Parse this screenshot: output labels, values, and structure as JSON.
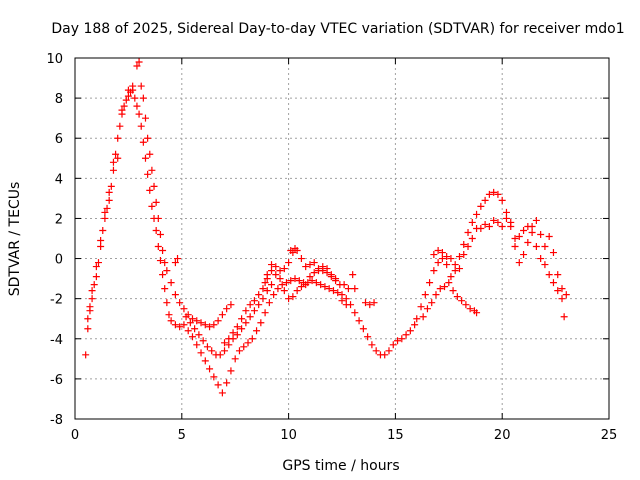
{
  "chart_data": {
    "type": "scatter",
    "title": "Day 188 of 2025, Sidereal Day-to-day VTEC variation (SDTVAR) for receiver mdo1",
    "xlabel": "GPS time / hours",
    "ylabel": "SDTVAR / TECUs",
    "xlim": [
      0,
      25
    ],
    "ylim": [
      -8,
      10
    ],
    "xticks": [
      0,
      5,
      10,
      15,
      20,
      25
    ],
    "yticks": [
      -8,
      -6,
      -4,
      -2,
      0,
      2,
      4,
      6,
      8,
      10
    ],
    "grid": true,
    "marker": "+",
    "color": "#ff0000",
    "series": [
      {
        "name": "main-trace",
        "points": [
          [
            0.5,
            -4.8
          ],
          [
            0.6,
            -3.5
          ],
          [
            0.7,
            -2.6
          ],
          [
            0.8,
            -2.0
          ],
          [
            0.9,
            -1.3
          ],
          [
            1.0,
            -0.9
          ],
          [
            1.1,
            -0.2
          ],
          [
            1.2,
            0.6
          ],
          [
            1.3,
            1.4
          ],
          [
            1.4,
            2.0
          ],
          [
            1.5,
            2.5
          ],
          [
            1.6,
            2.9
          ],
          [
            1.7,
            3.6
          ],
          [
            1.8,
            4.4
          ],
          [
            1.9,
            5.2
          ],
          [
            2.0,
            6.0
          ],
          [
            2.1,
            6.6
          ],
          [
            2.2,
            7.2
          ],
          [
            2.3,
            7.6
          ],
          [
            2.4,
            7.9
          ],
          [
            2.5,
            8.1
          ],
          [
            2.6,
            8.3
          ],
          [
            2.7,
            8.4
          ],
          [
            2.8,
            8.0
          ],
          [
            2.9,
            7.6
          ],
          [
            3.0,
            7.2
          ],
          [
            3.1,
            6.6
          ],
          [
            3.2,
            5.8
          ],
          [
            3.3,
            5.0
          ],
          [
            3.4,
            4.2
          ],
          [
            3.5,
            3.4
          ],
          [
            3.6,
            2.6
          ],
          [
            3.7,
            2.0
          ],
          [
            3.8,
            1.4
          ],
          [
            3.9,
            0.6
          ],
          [
            4.0,
            -0.1
          ],
          [
            4.1,
            -0.8
          ],
          [
            4.2,
            -1.5
          ],
          [
            4.3,
            -2.2
          ],
          [
            4.4,
            -2.8
          ],
          [
            4.5,
            -3.1
          ],
          [
            4.7,
            -3.3
          ],
          [
            4.9,
            -3.4
          ],
          [
            5.1,
            -3.3
          ],
          [
            5.3,
            -3.6
          ],
          [
            5.5,
            -3.9
          ],
          [
            5.7,
            -4.3
          ],
          [
            5.9,
            -4.7
          ],
          [
            6.1,
            -5.1
          ],
          [
            6.3,
            -5.5
          ],
          [
            6.5,
            -5.9
          ],
          [
            6.7,
            -6.3
          ],
          [
            6.9,
            -6.7
          ],
          [
            7.1,
            -6.2
          ],
          [
            7.3,
            -5.6
          ],
          [
            7.5,
            -5.0
          ],
          [
            7.7,
            -4.6
          ],
          [
            7.9,
            -4.4
          ],
          [
            8.1,
            -4.2
          ],
          [
            8.3,
            -4.0
          ],
          [
            8.5,
            -3.6
          ],
          [
            8.7,
            -3.2
          ],
          [
            8.9,
            -2.7
          ],
          [
            9.1,
            -2.2
          ],
          [
            9.3,
            -1.8
          ],
          [
            9.5,
            -1.5
          ],
          [
            9.7,
            -1.3
          ],
          [
            9.9,
            -1.2
          ],
          [
            10.1,
            -1.1
          ],
          [
            10.3,
            -1.0
          ],
          [
            10.5,
            -1.1
          ],
          [
            10.7,
            -1.2
          ],
          [
            10.9,
            -1.2
          ],
          [
            11.1,
            -1.1
          ],
          [
            11.3,
            -1.2
          ],
          [
            11.5,
            -1.3
          ],
          [
            11.7,
            -1.4
          ],
          [
            11.9,
            -1.5
          ],
          [
            12.1,
            -1.6
          ],
          [
            12.3,
            -1.7
          ],
          [
            12.5,
            -1.8
          ],
          [
            12.7,
            -2.0
          ],
          [
            12.9,
            -2.3
          ],
          [
            13.1,
            -2.7
          ],
          [
            13.3,
            -3.1
          ],
          [
            13.5,
            -3.5
          ],
          [
            13.7,
            -3.9
          ],
          [
            13.9,
            -4.3
          ],
          [
            14.1,
            -4.6
          ],
          [
            14.3,
            -4.8
          ],
          [
            14.5,
            -4.8
          ],
          [
            14.7,
            -4.6
          ],
          [
            14.9,
            -4.3
          ],
          [
            15.1,
            -4.1
          ],
          [
            15.3,
            -4.0
          ],
          [
            15.5,
            -3.8
          ],
          [
            15.7,
            -3.6
          ],
          [
            15.9,
            -3.3
          ]
        ]
      },
      {
        "name": "secondary-trace",
        "points": [
          [
            0.6,
            -3.0
          ],
          [
            0.7,
            -2.4
          ],
          [
            0.8,
            -1.6
          ],
          [
            1.0,
            -0.4
          ],
          [
            1.2,
            0.9
          ],
          [
            1.4,
            2.3
          ],
          [
            1.6,
            3.3
          ],
          [
            1.8,
            4.8
          ],
          [
            2.0,
            5.0
          ],
          [
            2.2,
            7.4
          ],
          [
            2.5,
            8.4
          ],
          [
            2.7,
            8.6
          ],
          [
            2.9,
            9.6
          ],
          [
            3.0,
            9.8
          ],
          [
            3.1,
            8.6
          ],
          [
            3.2,
            8.0
          ],
          [
            3.3,
            7.0
          ],
          [
            3.4,
            6.0
          ],
          [
            3.5,
            5.2
          ],
          [
            3.6,
            4.4
          ],
          [
            3.7,
            3.6
          ],
          [
            3.8,
            2.8
          ],
          [
            3.9,
            2.0
          ],
          [
            4.0,
            1.2
          ],
          [
            4.1,
            0.4
          ],
          [
            4.2,
            -0.2
          ],
          [
            4.3,
            -0.6
          ],
          [
            4.5,
            -1.2
          ],
          [
            4.7,
            -1.8
          ],
          [
            4.9,
            -2.2
          ],
          [
            5.1,
            -2.5
          ],
          [
            5.3,
            -2.8
          ],
          [
            5.5,
            -3.0
          ],
          [
            5.7,
            -3.1
          ],
          [
            5.9,
            -3.2
          ],
          [
            6.1,
            -3.3
          ],
          [
            6.3,
            -3.4
          ],
          [
            6.5,
            -3.3
          ],
          [
            6.7,
            -3.1
          ],
          [
            6.9,
            -2.8
          ],
          [
            7.1,
            -2.5
          ],
          [
            7.3,
            -2.3
          ]
        ]
      },
      {
        "name": "third-trace",
        "points": [
          [
            5.2,
            -2.9
          ],
          [
            5.4,
            -3.2
          ],
          [
            5.6,
            -3.5
          ],
          [
            5.8,
            -3.8
          ],
          [
            6.0,
            -4.1
          ],
          [
            6.2,
            -4.4
          ],
          [
            6.4,
            -4.6
          ],
          [
            6.6,
            -4.8
          ],
          [
            6.8,
            -4.8
          ],
          [
            7.0,
            -4.6
          ],
          [
            7.2,
            -4.3
          ],
          [
            7.4,
            -4.0
          ],
          [
            7.6,
            -3.8
          ],
          [
            7.8,
            -3.5
          ],
          [
            8.0,
            -3.2
          ],
          [
            8.2,
            -2.9
          ],
          [
            8.4,
            -2.6
          ],
          [
            8.6,
            -2.3
          ],
          [
            8.8,
            -2.0
          ],
          [
            9.0,
            -1.6
          ],
          [
            9.2,
            -1.3
          ],
          [
            9.4,
            -0.8
          ],
          [
            9.6,
            -0.6
          ],
          [
            9.8,
            -0.5
          ],
          [
            10.0,
            -0.2
          ],
          [
            10.2,
            0.3
          ],
          [
            10.4,
            0.4
          ],
          [
            10.6,
            0.0
          ],
          [
            10.8,
            -0.4
          ],
          [
            11.0,
            -0.3
          ],
          [
            11.2,
            -0.2
          ],
          [
            11.4,
            -0.5
          ],
          [
            11.6,
            -0.6
          ],
          [
            11.8,
            -0.7
          ],
          [
            12.0,
            -0.9
          ],
          [
            12.2,
            -1.1
          ],
          [
            12.4,
            -1.3
          ],
          [
            12.6,
            -1.3
          ],
          [
            12.8,
            -1.5
          ]
        ]
      },
      {
        "name": "fourth-trace",
        "points": [
          [
            7.0,
            -4.2
          ],
          [
            7.2,
            -4.0
          ],
          [
            7.4,
            -3.7
          ],
          [
            7.6,
            -3.4
          ],
          [
            7.8,
            -3.0
          ],
          [
            8.0,
            -2.6
          ],
          [
            8.2,
            -2.3
          ],
          [
            8.4,
            -2.1
          ],
          [
            8.6,
            -1.8
          ],
          [
            8.8,
            -1.5
          ],
          [
            9.0,
            -1.0
          ],
          [
            9.2,
            -0.6
          ],
          [
            9.4,
            -0.4
          ],
          [
            9.6,
            -1.0
          ],
          [
            9.8,
            -1.6
          ],
          [
            10.0,
            -2.0
          ],
          [
            10.2,
            -1.9
          ],
          [
            10.4,
            -1.6
          ],
          [
            10.6,
            -1.4
          ],
          [
            10.8,
            -1.3
          ],
          [
            11.0,
            -0.9
          ],
          [
            11.2,
            -0.7
          ],
          [
            11.4,
            -0.6
          ],
          [
            11.6,
            -0.4
          ],
          [
            11.8,
            -0.5
          ],
          [
            12.0,
            -0.8
          ],
          [
            12.2,
            -1.0
          ]
        ]
      },
      {
        "name": "late-cluster",
        "points": [
          [
            16.0,
            -3.0
          ],
          [
            16.2,
            -2.4
          ],
          [
            16.4,
            -1.8
          ],
          [
            16.6,
            -1.2
          ],
          [
            16.8,
            -0.6
          ],
          [
            17.0,
            -0.2
          ],
          [
            17.2,
            0.0
          ],
          [
            17.4,
            -0.3
          ],
          [
            17.6,
            -0.9
          ],
          [
            17.8,
            -0.6
          ],
          [
            18.0,
            0.1
          ],
          [
            18.2,
            0.7
          ],
          [
            18.4,
            1.3
          ],
          [
            18.6,
            1.8
          ],
          [
            18.8,
            2.2
          ],
          [
            19.0,
            2.6
          ],
          [
            19.2,
            2.9
          ],
          [
            19.4,
            3.2
          ],
          [
            19.6,
            3.3
          ],
          [
            19.8,
            3.2
          ],
          [
            20.0,
            2.9
          ],
          [
            20.2,
            2.3
          ],
          [
            20.4,
            1.6
          ],
          [
            20.6,
            1.0
          ],
          [
            20.8,
            1.1
          ],
          [
            21.0,
            1.4
          ],
          [
            21.2,
            1.6
          ],
          [
            21.4,
            1.3
          ],
          [
            21.6,
            0.6
          ],
          [
            21.8,
            0.0
          ],
          [
            22.0,
            -0.3
          ],
          [
            22.2,
            -0.8
          ],
          [
            22.4,
            -1.2
          ],
          [
            22.6,
            -1.6
          ],
          [
            22.8,
            -2.0
          ],
          [
            22.9,
            -2.9
          ],
          [
            16.3,
            -2.9
          ],
          [
            16.5,
            -2.5
          ],
          [
            16.7,
            -2.2
          ],
          [
            16.9,
            -1.8
          ],
          [
            17.1,
            -1.5
          ],
          [
            17.3,
            -1.4
          ],
          [
            17.5,
            -1.2
          ],
          [
            17.7,
            -1.6
          ],
          [
            17.9,
            -1.9
          ],
          [
            18.1,
            -2.1
          ],
          [
            18.3,
            -2.3
          ],
          [
            18.5,
            -2.5
          ],
          [
            18.7,
            -2.6
          ],
          [
            18.8,
            -2.7
          ],
          [
            16.8,
            0.2
          ],
          [
            17.0,
            0.4
          ],
          [
            17.2,
            0.3
          ],
          [
            17.4,
            0.1
          ],
          [
            17.6,
            0.0
          ],
          [
            17.8,
            -0.3
          ],
          [
            18.0,
            -0.5
          ],
          [
            18.2,
            0.2
          ],
          [
            18.4,
            0.6
          ],
          [
            18.6,
            1.0
          ],
          [
            18.8,
            1.5
          ],
          [
            19.0,
            1.5
          ],
          [
            19.2,
            1.7
          ],
          [
            19.4,
            1.6
          ],
          [
            19.6,
            1.9
          ],
          [
            19.8,
            1.8
          ],
          [
            20.0,
            1.6
          ],
          [
            20.2,
            2.0
          ],
          [
            20.4,
            1.8
          ],
          [
            20.6,
            0.6
          ],
          [
            20.8,
            -0.2
          ],
          [
            21.0,
            0.2
          ],
          [
            21.2,
            0.8
          ],
          [
            21.4,
            1.6
          ],
          [
            21.6,
            1.9
          ],
          [
            21.8,
            1.2
          ],
          [
            22.0,
            0.6
          ],
          [
            22.2,
            1.1
          ],
          [
            22.4,
            0.3
          ],
          [
            22.6,
            -0.8
          ],
          [
            22.8,
            -1.5
          ],
          [
            23.0,
            -1.8
          ]
        ]
      },
      {
        "name": "scattered-points",
        "points": [
          [
            4.7,
            -0.2
          ],
          [
            4.8,
            0.0
          ],
          [
            13.0,
            -0.8
          ],
          [
            13.1,
            -1.5
          ],
          [
            13.6,
            -2.2
          ],
          [
            13.8,
            -2.3
          ],
          [
            14.0,
            -2.2
          ],
          [
            12.5,
            -2.1
          ],
          [
            12.7,
            -2.3
          ],
          [
            10.1,
            0.4
          ],
          [
            10.3,
            0.5
          ],
          [
            9.2,
            -0.3
          ],
          [
            9.0,
            -0.8
          ],
          [
            8.9,
            -1.2
          ]
        ]
      }
    ]
  }
}
